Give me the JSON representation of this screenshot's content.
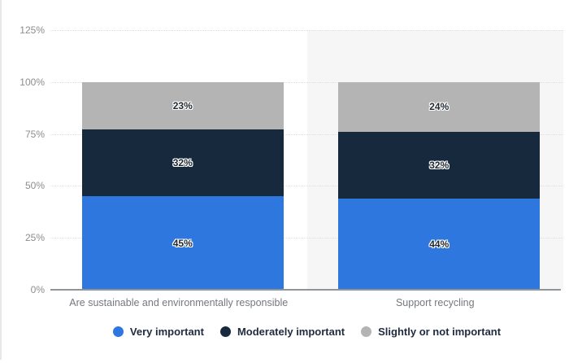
{
  "chart_data": {
    "type": "bar",
    "subtype": "stacked-vertical",
    "title": "",
    "xlabel": "",
    "ylabel": "",
    "categories": [
      "Are sustainable and environmentally responsible",
      "Support recycling"
    ],
    "series": [
      {
        "name": "Very important",
        "color": "#2d77de",
        "values": [
          45,
          44
        ]
      },
      {
        "name": "Moderately important",
        "color": "#16293d",
        "values": [
          32,
          32
        ]
      },
      {
        "name": "Slightly or not important",
        "color": "#b4b4b4",
        "values": [
          23,
          24
        ]
      }
    ],
    "value_suffix": "%",
    "data_labels": [
      [
        "45%",
        "32%",
        "23%"
      ],
      [
        "44%",
        "32%",
        "24%"
      ]
    ],
    "y_ticks": [
      "0%",
      "25%",
      "50%",
      "75%",
      "100%",
      "125%"
    ],
    "y_tick_values": [
      0,
      25,
      50,
      75,
      100,
      125
    ],
    "ylim": [
      0,
      125
    ],
    "grid": "horizontal-dotted",
    "legend_position": "bottom",
    "highlighted_category_index": 1,
    "highlight_band_color": "#f6f6f6"
  }
}
